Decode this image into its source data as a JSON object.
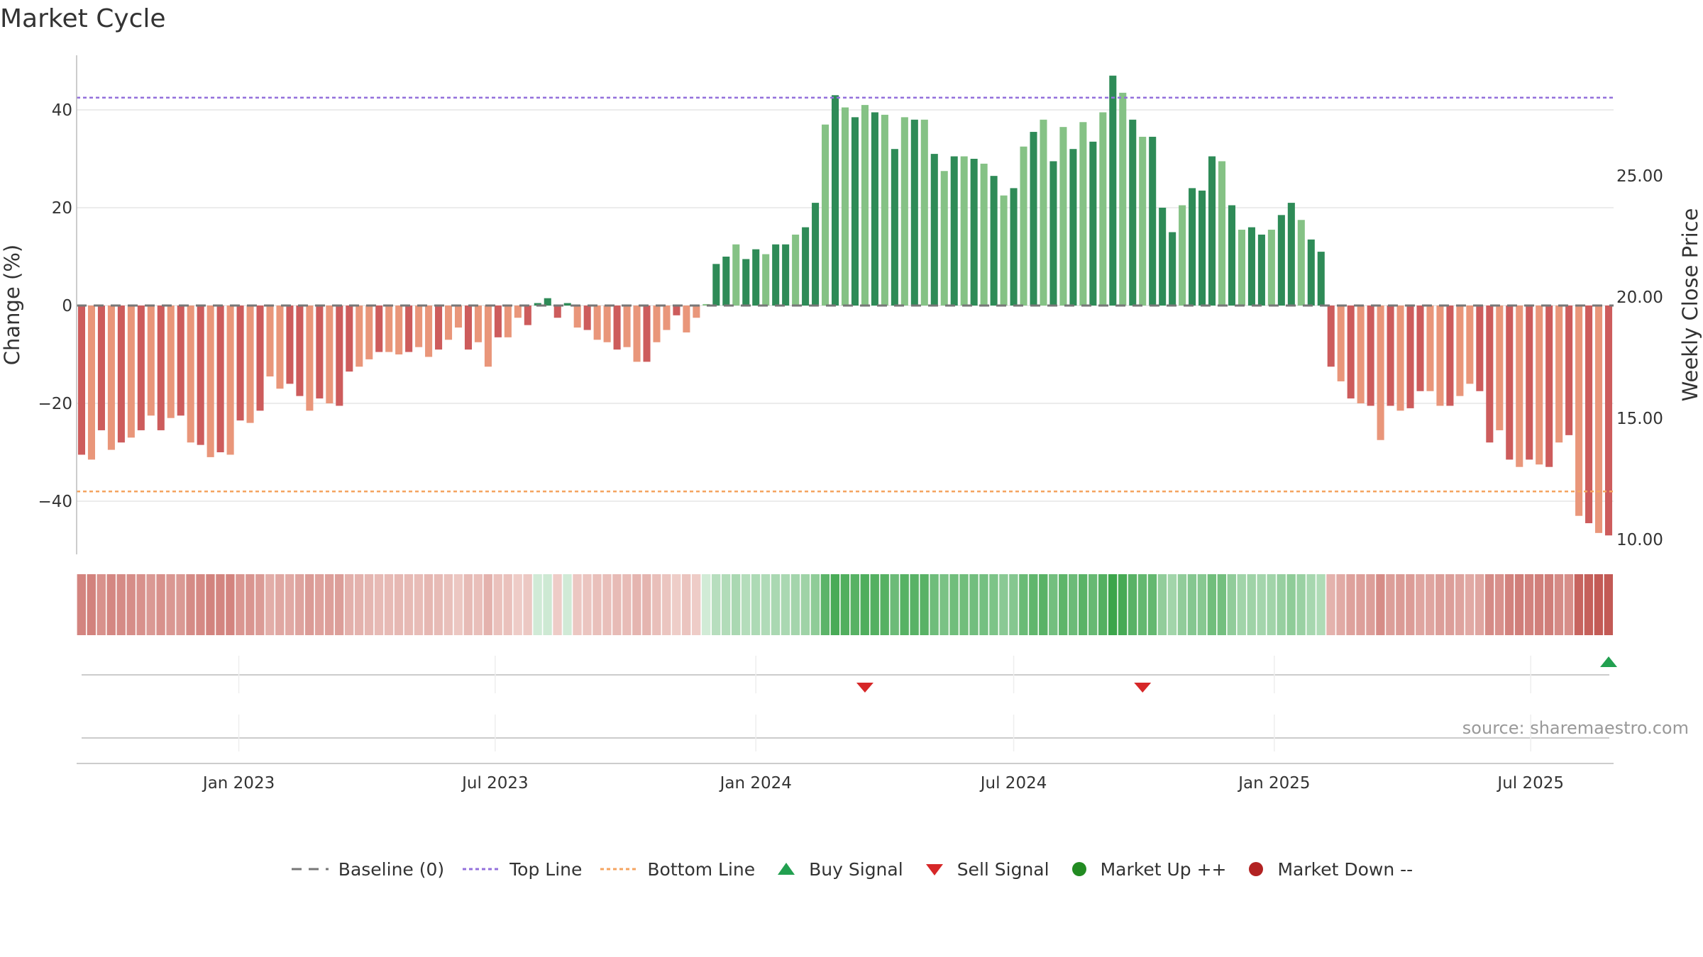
{
  "title": "Market Cycle",
  "source": "source: sharemaestro.com",
  "colors": {
    "dark_green": "#2e8b57",
    "light_green": "#85c285",
    "dark_red": "#cd5c5c",
    "light_red": "#e9967a",
    "top_line": "#9370db",
    "bottom_line": "#f4a460",
    "baseline": "#777777",
    "buy": "#22a050",
    "sell": "#d62728",
    "market_up": "#228b22",
    "market_down": "#b22222"
  },
  "chart_data": {
    "type": "bar",
    "x_start": "2022-09-12",
    "x_step_days": 7,
    "x_ticks": [
      "Jan 2023",
      "Jul 2023",
      "Jan 2024",
      "Jul 2024",
      "Jan 2025",
      "Jul 2025"
    ],
    "x_tick_dates": [
      "2023-01-01",
      "2023-07-01",
      "2024-01-01",
      "2024-07-01",
      "2025-01-01",
      "2025-07-01"
    ],
    "ylabel": "Change (%)",
    "ylabel_right": "Weekly Close Price",
    "ylim": [
      -51,
      51
    ],
    "yticks": [
      40,
      20,
      0,
      -20,
      -40
    ],
    "yticks_right": [
      "25.00",
      "20.00",
      "15.00",
      "10.00"
    ],
    "top_line": 42.5,
    "bottom_line": -38.0,
    "values": [
      -30.5,
      -31.5,
      -25.5,
      -29.5,
      -28,
      -27,
      -25.5,
      -22.5,
      -25.5,
      -23,
      -22.5,
      -28,
      -28.5,
      -31,
      -30,
      -30.5,
      -23.5,
      -24,
      -21.5,
      -14.5,
      -17,
      -16,
      -18.5,
      -21.5,
      -19,
      -20,
      -20.5,
      -13.5,
      -12.5,
      -11,
      -9.5,
      -9.5,
      -10,
      -9.5,
      -8.5,
      -10.5,
      -9,
      -7,
      -4.5,
      -9,
      -7.5,
      -12.5,
      -6.5,
      -6.5,
      -2.5,
      -4,
      0.5,
      1.5,
      -2.5,
      0.5,
      -4.5,
      -5,
      -7,
      -7.5,
      -9,
      -8.5,
      -11.5,
      -11.5,
      -7.5,
      -5,
      -2,
      -5.5,
      -2.5,
      0.3,
      8.5,
      10,
      12.5,
      9.5,
      11.5,
      10.5,
      12.5,
      12.5,
      14.5,
      16,
      21,
      37,
      43,
      40.5,
      38.5,
      41,
      39.5,
      39,
      32,
      38.5,
      38,
      38,
      31,
      27.5,
      30.5,
      30.5,
      30,
      29,
      26.5,
      22.5,
      24,
      32.5,
      35.5,
      38,
      29.5,
      36.5,
      32,
      37.5,
      33.5,
      39.5,
      47,
      43.5,
      38,
      34.5,
      34.5,
      20,
      15,
      20.5,
      24,
      23.5,
      30.5,
      29.5,
      20.5,
      15.5,
      16,
      14.5,
      15.5,
      18.5,
      21,
      17.5,
      13.5,
      11,
      -12.5,
      -15.5,
      -19,
      -20,
      -20.5,
      -27.5,
      -20.5,
      -21.5,
      -21,
      -17.5,
      -17.5,
      -20.5,
      -20.5,
      -18.5,
      -16,
      -17.5,
      -28,
      -25.5,
      -31.5,
      -33,
      -31.5,
      -32.5,
      -33,
      -28,
      -26.5,
      -43,
      -44.5,
      -46.5,
      -47
    ],
    "series": [
      {
        "name": "Baseline (0)"
      },
      {
        "name": "Top Line"
      },
      {
        "name": "Bottom Line"
      },
      {
        "name": "Buy Signal",
        "dates": [
          "2025-08-25"
        ]
      },
      {
        "name": "Sell Signal",
        "dates": [
          "2024-03-18",
          "2024-09-30"
        ]
      },
      {
        "name": "Market Up ++"
      },
      {
        "name": "Market Down --"
      }
    ]
  }
}
